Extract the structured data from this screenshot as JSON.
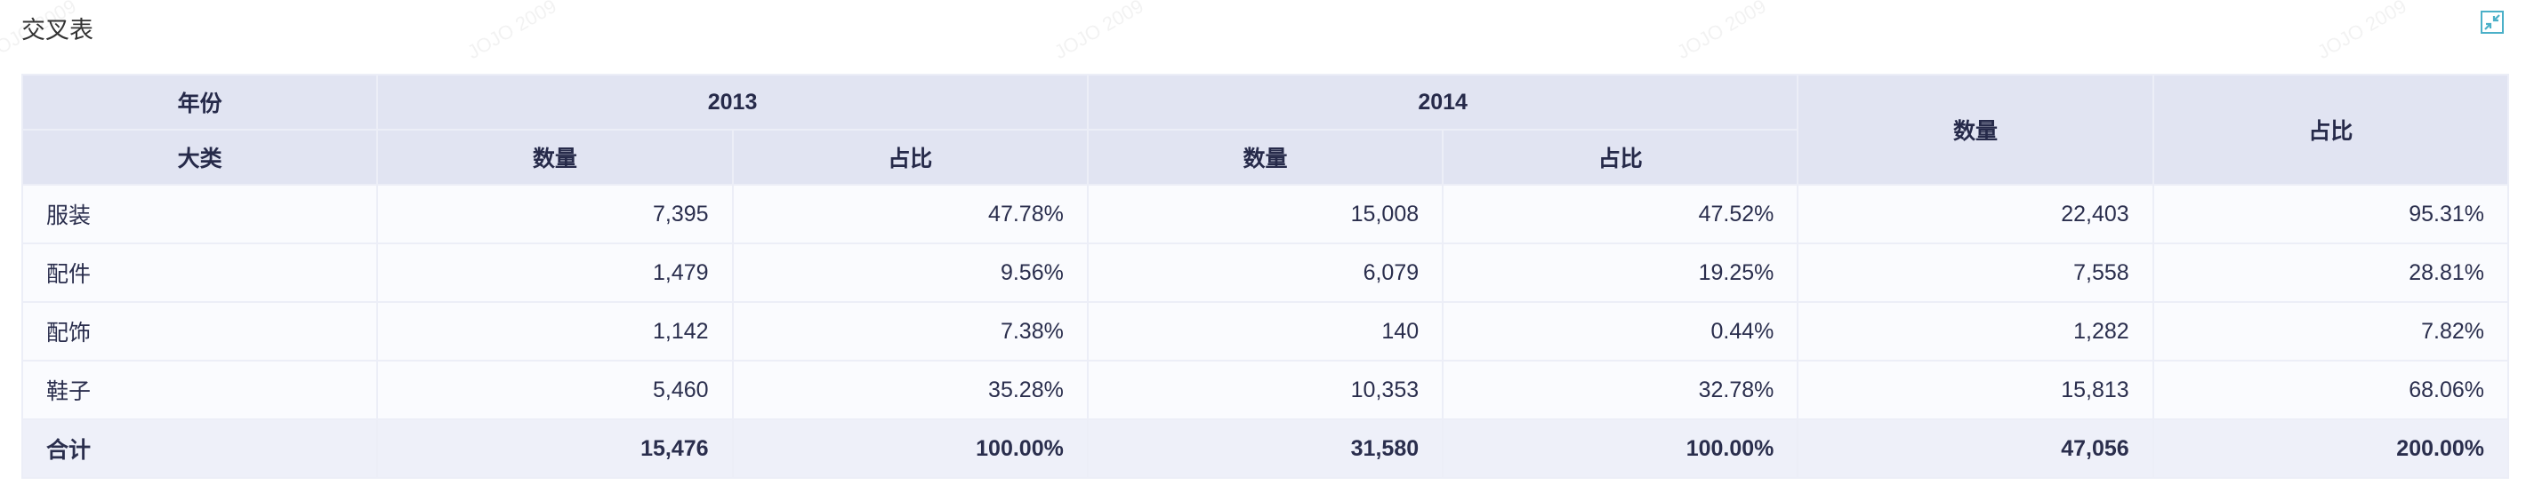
{
  "title": "交叉表",
  "watermark": "JOJO 2009",
  "icons": {
    "collapse": "shrink-arrows-icon"
  },
  "colors": {
    "header_bg": "#e1e4f2",
    "row_bg": "#fafbfe",
    "accent": "#4bb0c8"
  },
  "table": {
    "header_row1": {
      "dim": "年份",
      "year1": "2013",
      "year2": "2014",
      "total_qty": "数量",
      "total_pct": "占比"
    },
    "header_row2": {
      "dim": "大类",
      "qty1": "数量",
      "pct1": "占比",
      "qty2": "数量",
      "pct2": "占比"
    },
    "rows": [
      {
        "cat": "服装",
        "v": [
          "7,395",
          "47.78%",
          "15,008",
          "47.52%",
          "22,403",
          "95.31%"
        ]
      },
      {
        "cat": "配件",
        "v": [
          "1,479",
          "9.56%",
          "6,079",
          "19.25%",
          "7,558",
          "28.81%"
        ]
      },
      {
        "cat": "配饰",
        "v": [
          "1,142",
          "7.38%",
          "140",
          "0.44%",
          "1,282",
          "7.82%"
        ]
      },
      {
        "cat": "鞋子",
        "v": [
          "5,460",
          "35.28%",
          "10,353",
          "32.78%",
          "15,813",
          "68.06%"
        ]
      }
    ],
    "total": {
      "cat": "合计",
      "v": [
        "15,476",
        "100.00%",
        "31,580",
        "100.00%",
        "47,056",
        "200.00%"
      ]
    }
  }
}
